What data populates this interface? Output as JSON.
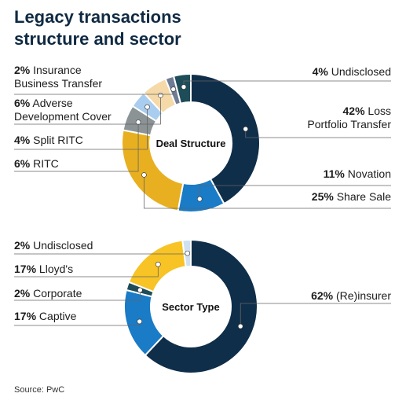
{
  "header": {
    "title_line1": "Legacy transactions",
    "title_line2": "structure and sector"
  },
  "footer": {
    "source": "Source: PwC"
  },
  "colors": {
    "navy": "#0f2e4a",
    "blue": "#1a7bc6",
    "gold": "#e8b020",
    "yellow": "#f7c325",
    "light_blue": "#a9cdee",
    "peach": "#f6d9a8",
    "grey": "#8b9395",
    "slate": "#6e7d95",
    "teal": "#1e4c58",
    "pale_blue": "#cfe0f3"
  },
  "chart_data": [
    {
      "type": "pie",
      "donut": true,
      "center_label": "Deal Structure",
      "slices": [
        {
          "label": "Loss Portfolio Transfer",
          "value": 42,
          "color": "#0f2e4a",
          "display": [
            "42% Loss",
            "Portfolio Transfer"
          ]
        },
        {
          "label": "Novation",
          "value": 11,
          "color": "#1a7bc6",
          "display": [
            "11% Novation"
          ]
        },
        {
          "label": "Share Sale",
          "value": 25,
          "color": "#e8b020",
          "display": [
            "25% Share Sale"
          ]
        },
        {
          "label": "RITC",
          "value": 6,
          "color": "#8b9395",
          "display": [
            "6% RITC"
          ]
        },
        {
          "label": "Split RITC",
          "value": 4,
          "color": "#a9cdee",
          "display": [
            "4% Split RITC"
          ]
        },
        {
          "label": "Adverse Development Cover",
          "value": 6,
          "color": "#f6d9a8",
          "display": [
            "6% Adverse",
            "Development Cover"
          ]
        },
        {
          "label": "Insurance Business Transfer",
          "value": 2,
          "color": "#6e7d95",
          "display": [
            "2% Insurance",
            "Business Transfer"
          ]
        },
        {
          "label": "Undisclosed",
          "value": 4,
          "color": "#1e4c58",
          "display": [
            "4% Undisclosed"
          ]
        }
      ]
    },
    {
      "type": "pie",
      "donut": true,
      "center_label": "Sector Type",
      "slices": [
        {
          "label": "(Re)insurer",
          "value": 62,
          "color": "#0f2e4a",
          "display": [
            "62% (Re)insurer"
          ]
        },
        {
          "label": "Captive",
          "value": 17,
          "color": "#1a7bc6",
          "display": [
            "17% Captive"
          ]
        },
        {
          "label": "Corporate",
          "value": 2,
          "color": "#1e4c58",
          "display": [
            "2% Corporate"
          ]
        },
        {
          "label": "Lloyd's",
          "value": 17,
          "color": "#f7c325",
          "display": [
            "17% Lloyd's"
          ]
        },
        {
          "label": "Undisclosed",
          "value": 2,
          "color": "#cfe0f3",
          "display": [
            "2% Undisclosed"
          ]
        }
      ]
    }
  ]
}
